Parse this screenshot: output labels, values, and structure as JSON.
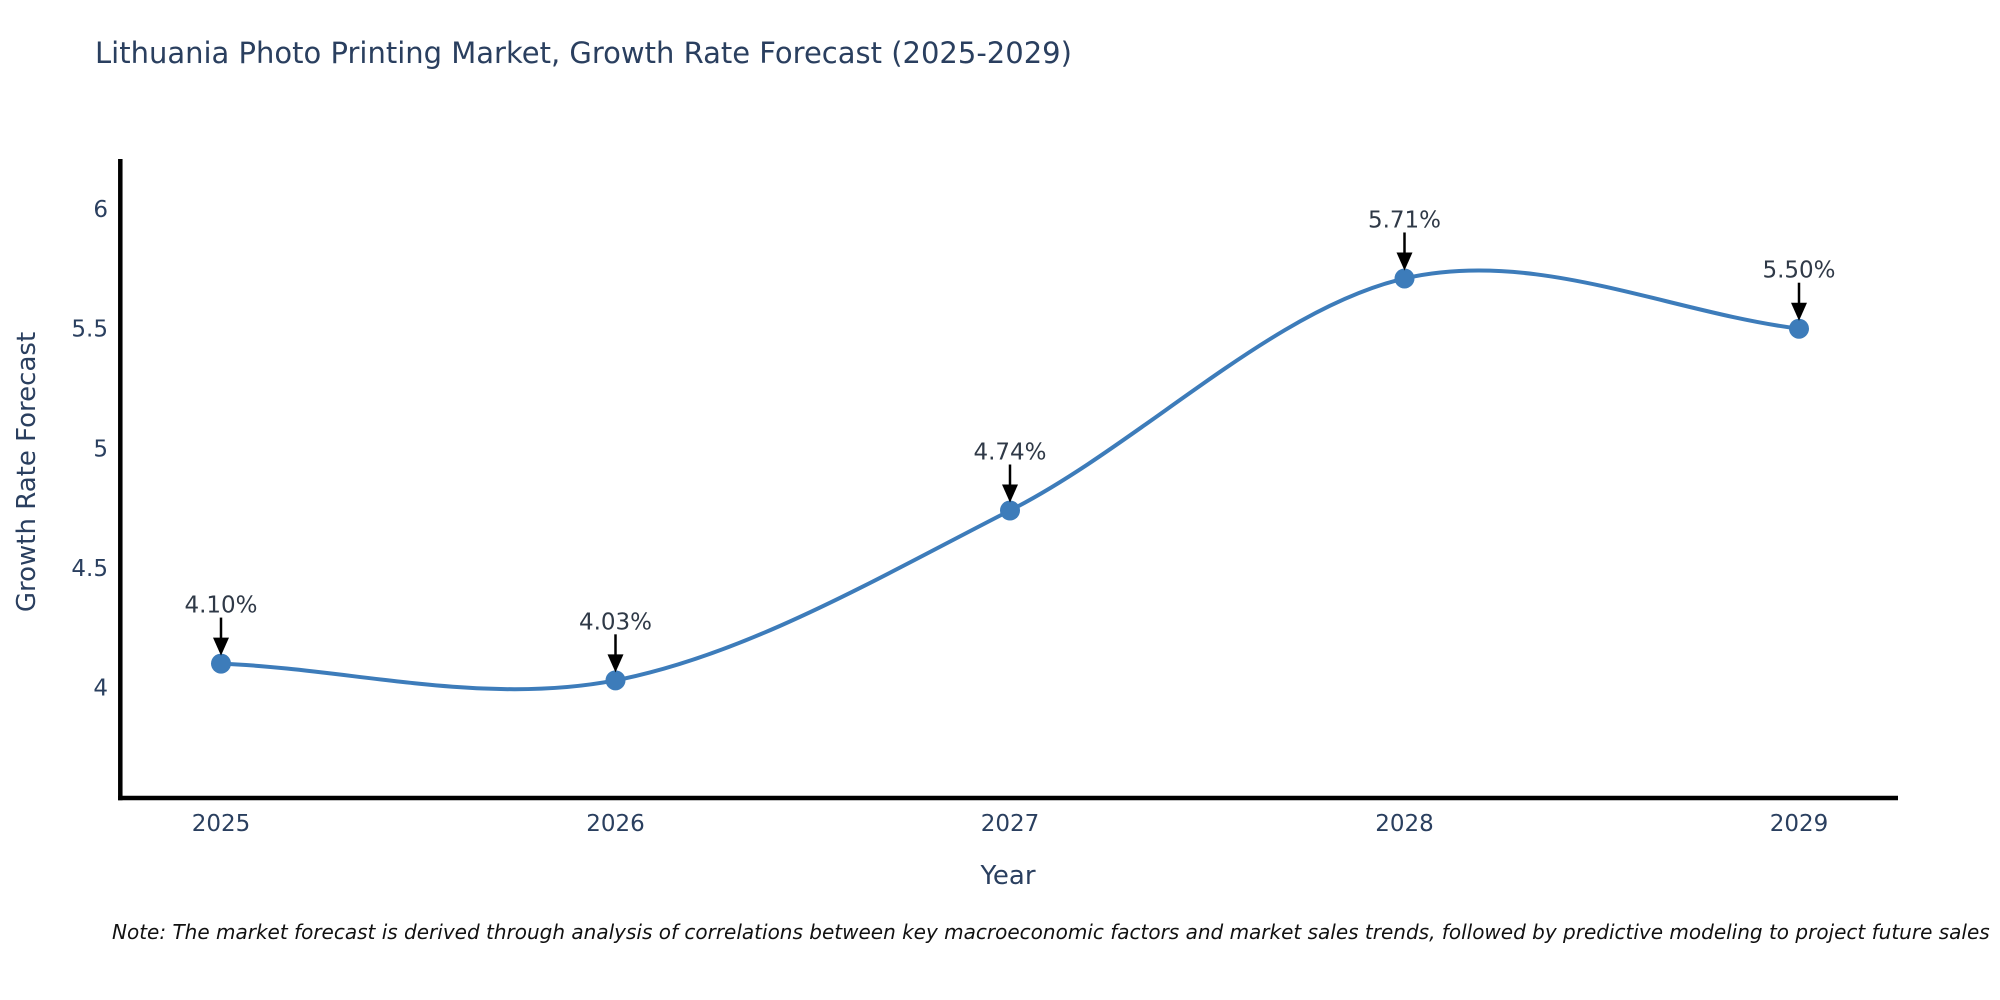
{
  "header": {
    "title": "Lithuania Photo Printing Market, Growth Rate Forecast (2025-2029)"
  },
  "axes": {
    "x_title": "Year",
    "y_title": "Growth Rate Forecast"
  },
  "footnote": {
    "text": "Note: The market forecast is derived through analysis of correlations between key macroeconomic factors and market sales trends, followed by predictive modeling to project future sales"
  },
  "colors": {
    "line": "#3d7cba",
    "marker": "#3d7cba",
    "chart_text": "#2a3f5f",
    "annotation_text": "#2f3947",
    "arrow": "#000000",
    "axis_line": "#000000",
    "background": "#ffffff"
  },
  "chart_data": {
    "type": "line",
    "line_shape": "spline",
    "title": "Lithuania Photo Printing Market, Growth Rate Forecast (2025-2029)",
    "xlabel": "Year",
    "ylabel": "Growth Rate Forecast",
    "x": [
      2025,
      2026,
      2027,
      2028,
      2029
    ],
    "x_labels": [
      "2025",
      "2026",
      "2027",
      "2028",
      "2029"
    ],
    "series": [
      {
        "name": "Growth Rate Forecast",
        "values": [
          4.1,
          4.03,
          4.74,
          5.71,
          5.5
        ]
      }
    ],
    "data_labels": [
      "4.10%",
      "4.03%",
      "4.74%",
      "5.71%",
      "5.50%"
    ],
    "yticks": [
      "4",
      "4.5",
      "5",
      "5.5",
      "6"
    ],
    "ytick_values": [
      4,
      4.5,
      5,
      5.5,
      6
    ],
    "ylim": [
      3.55,
      6.2
    ],
    "grid": false,
    "legend": false,
    "annotations_have_arrows": true
  }
}
